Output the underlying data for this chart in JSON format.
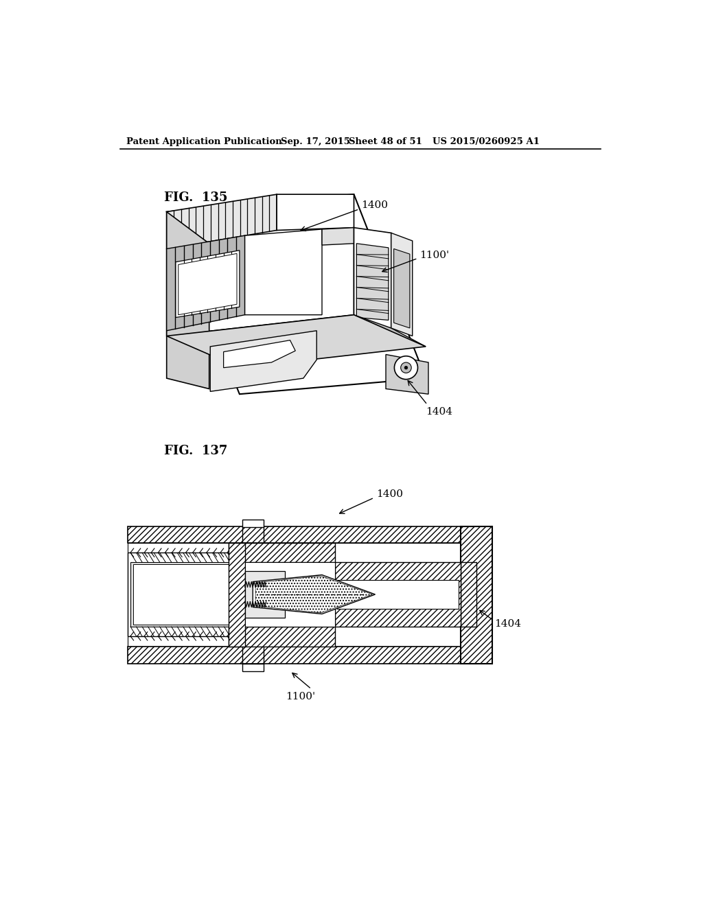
{
  "bg_color": "#ffffff",
  "header_text": "Patent Application Publication",
  "header_date": "Sep. 17, 2015",
  "header_sheet": "Sheet 48 of 51",
  "header_patent": "US 2015/0260925 A1",
  "fig135_label": "FIG.  135",
  "fig137_label": "FIG.  137",
  "label_1400_top": "1400",
  "label_1100prime_top": "1100'",
  "label_1404_top": "1404",
  "label_1400_bot": "1400",
  "label_1404_bot": "1404",
  "label_1100prime_bot": "1100'",
  "line_color": "#000000"
}
